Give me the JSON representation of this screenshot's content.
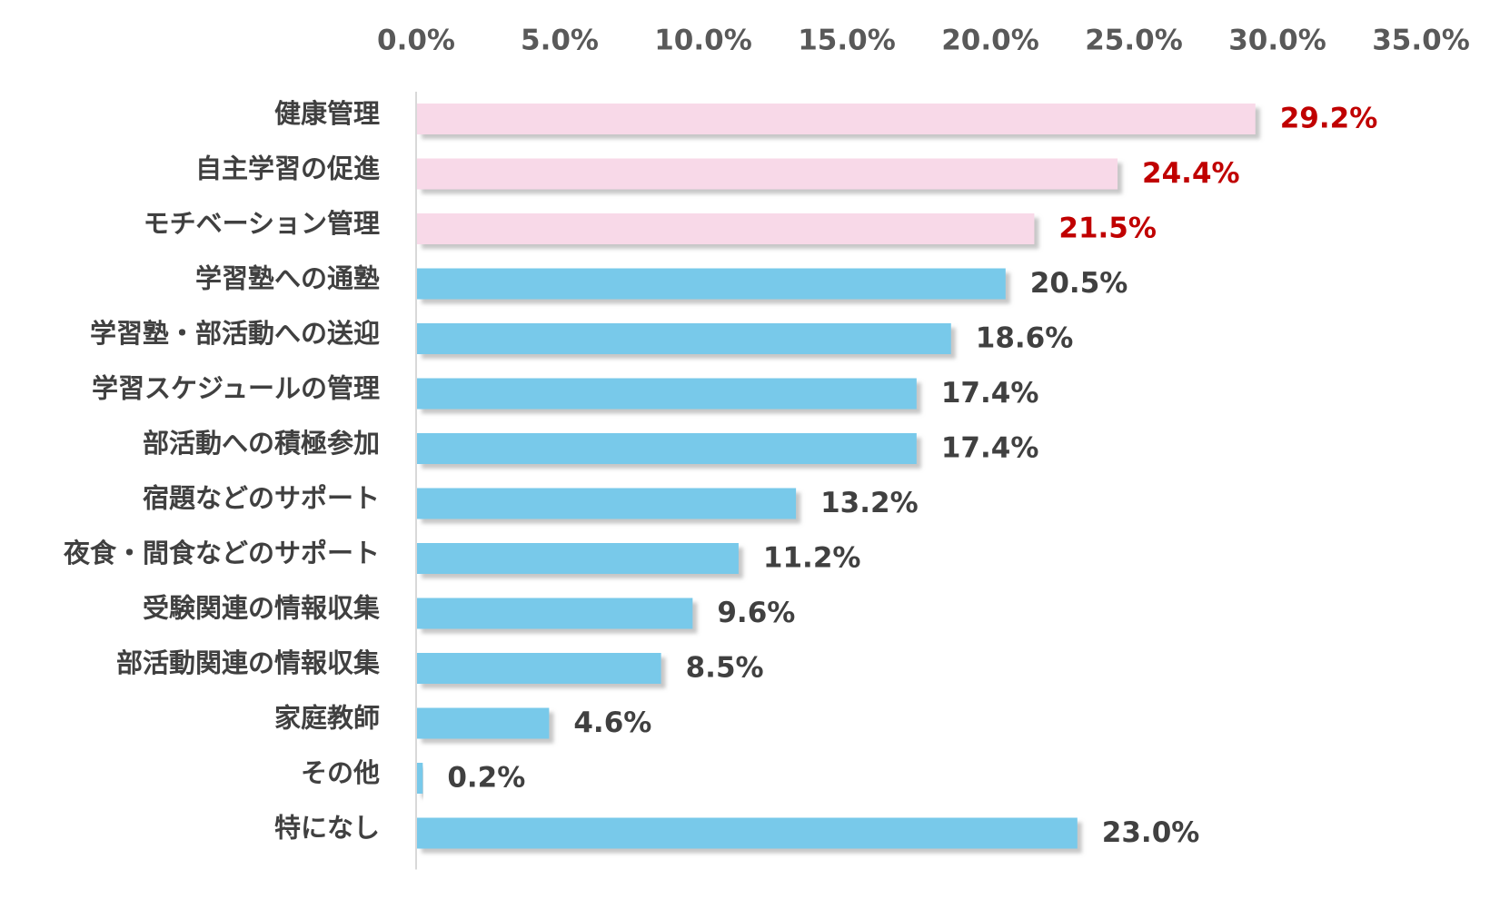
{
  "chart_data": {
    "type": "bar",
    "orientation": "horizontal",
    "title": "",
    "xlabel": "",
    "ylabel": "",
    "xlim": [
      0,
      35
    ],
    "x_ticks": [
      "0.0%",
      "5.0%",
      "10.0%",
      "15.0%",
      "20.0%",
      "25.0%",
      "30.0%",
      "35.0%"
    ],
    "x_axis_position": "top",
    "grid": false,
    "legend": "none",
    "categories": [
      "健康管理",
      "自主学習の促進",
      "モチベーション管理",
      "学習塾への通塾",
      "学習塾・部活動への送迎",
      "学習スケジュールの管理",
      "部活動への積極参加",
      "宿題などのサポート",
      "夜食・間食などのサポート",
      "受験関連の情報収集",
      "部活動関連の情報収集",
      "家庭教師",
      "その他",
      "特になし"
    ],
    "values": [
      29.2,
      24.4,
      21.5,
      20.5,
      18.6,
      17.4,
      17.4,
      13.2,
      11.2,
      9.6,
      8.5,
      4.6,
      0.2,
      23.0
    ],
    "value_labels": [
      "29.2%",
      "24.4%",
      "21.5%",
      "20.5%",
      "18.6%",
      "17.4%",
      "17.4%",
      "13.2%",
      "11.2%",
      "9.6%",
      "8.5%",
      "4.6%",
      "0.2%",
      "23.0%"
    ],
    "highlighted": [
      true,
      true,
      true,
      false,
      false,
      false,
      false,
      false,
      false,
      false,
      false,
      false,
      false,
      false
    ]
  },
  "colors": {
    "highlight_bar": "#f8d9e8",
    "normal_bar": "#78c9ea",
    "highlight_label": "#c00000",
    "normal_label": "#404040",
    "axis_line": "#d9d9d9",
    "shadow": "#bfbfbf"
  }
}
